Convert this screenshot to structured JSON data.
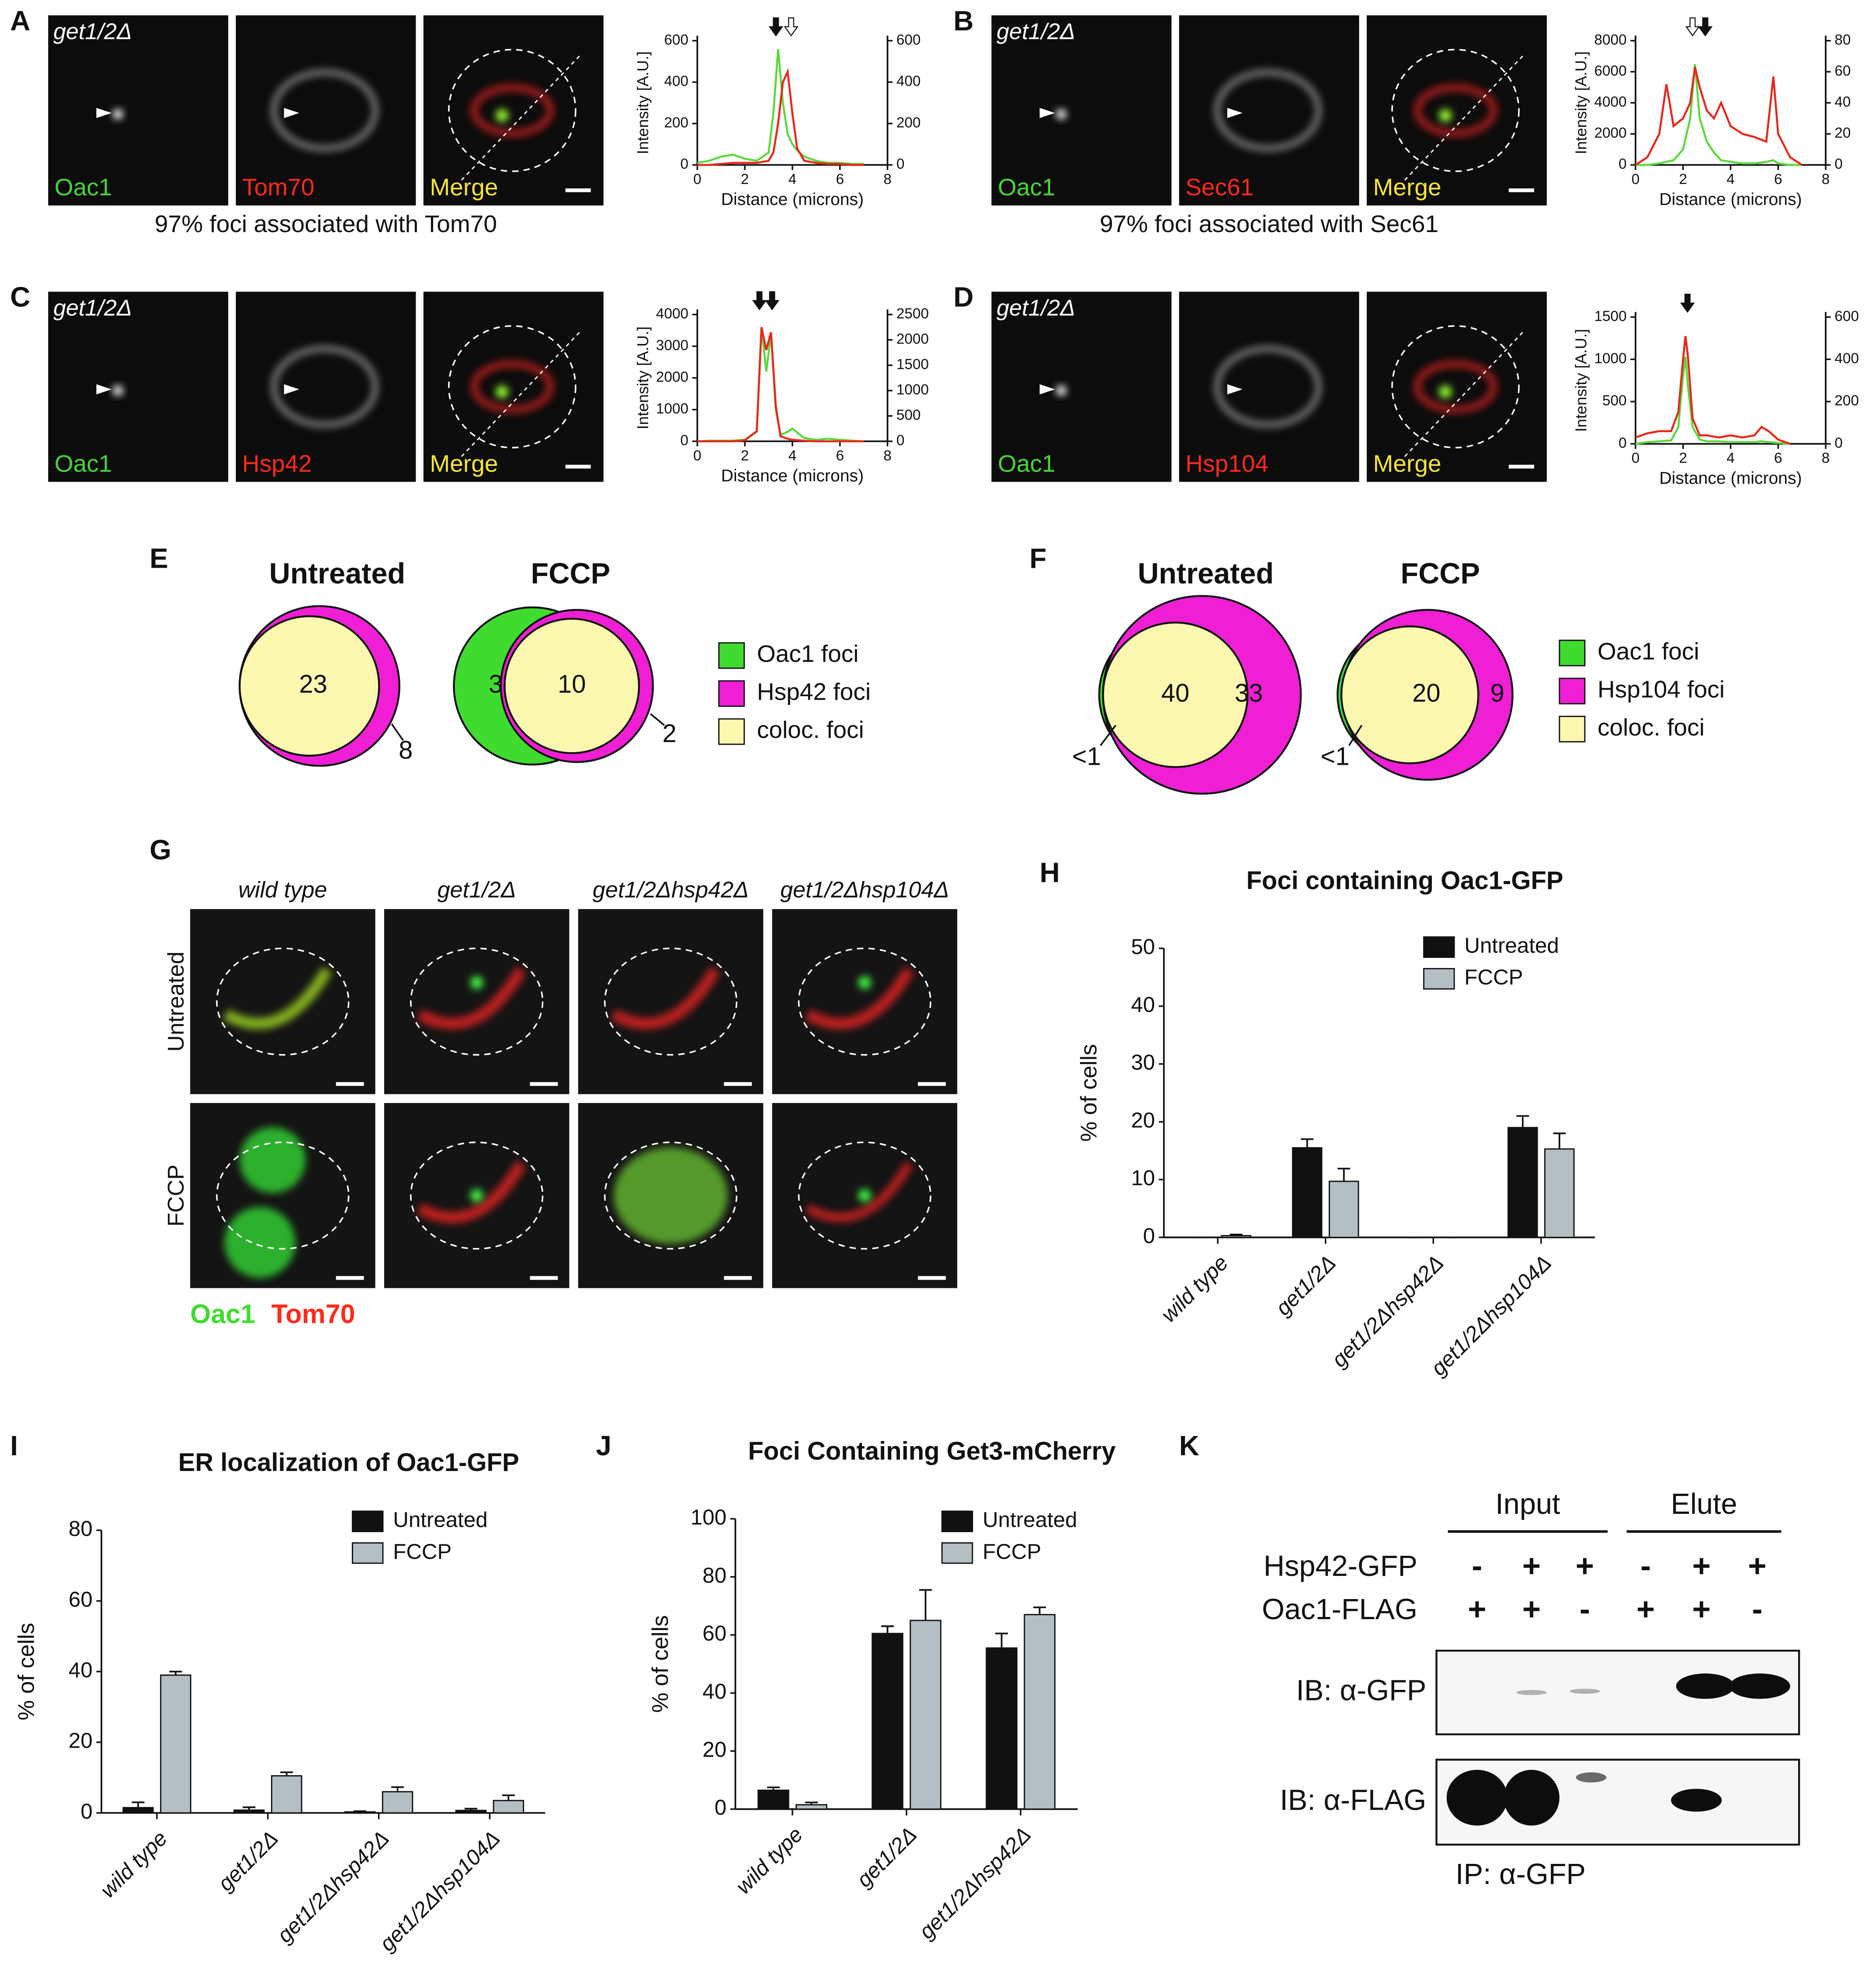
{
  "image_panels": [
    {
      "letter": "A",
      "strain": "get1/2Δ",
      "channels": [
        "Oac1",
        "Tom70",
        "Merge"
      ],
      "caption": "97% foci associated with Tom70"
    },
    {
      "letter": "B",
      "strain": "get1/2Δ",
      "channels": [
        "Oac1",
        "Sec61",
        "Merge"
      ],
      "caption": "97% foci associated with Sec61"
    },
    {
      "letter": "C",
      "strain": "get1/2Δ",
      "channels": [
        "Oac1",
        "Hsp42",
        "Merge"
      ]
    },
    {
      "letter": "D",
      "strain": "get1/2Δ",
      "channels": [
        "Oac1",
        "Hsp104",
        "Merge"
      ]
    }
  ],
  "venn": [
    {
      "letter": "E",
      "diagrams": [
        {
          "title": "Untreated",
          "labels": [
            "23",
            "8"
          ]
        },
        {
          "title": "FCCP",
          "labels": [
            "3",
            "10",
            "2"
          ]
        }
      ],
      "legend": [
        "Oac1 foci",
        "Hsp42 foci",
        "coloc. foci"
      ]
    },
    {
      "letter": "F",
      "diagrams": [
        {
          "title": "Untreated",
          "labels": [
            "<1",
            "40",
            "33"
          ]
        },
        {
          "title": "FCCP",
          "labels": [
            "<1",
            "20",
            "9"
          ]
        }
      ],
      "legend": [
        "Oac1 foci",
        "Hsp104 foci",
        "coloc. foci"
      ]
    }
  ],
  "image_grid": {
    "letter": "G",
    "columns": [
      "wild type",
      "get1/2Δ",
      "get1/2Δhsp42Δ",
      "get1/2Δhsp104Δ"
    ],
    "rows": [
      "Untreated",
      "FCCP"
    ],
    "legend": [
      "Oac1",
      "Tom70"
    ]
  },
  "blot": {
    "letter": "K",
    "groups": [
      "Input",
      "Elute"
    ],
    "rows": [
      {
        "label": "Hsp42-GFP",
        "signs": [
          "-",
          "+",
          "+",
          "-",
          "+",
          "+"
        ]
      },
      {
        "label": "Oac1-FLAG",
        "signs": [
          "+",
          "+",
          "-",
          "+",
          "+",
          "-"
        ]
      }
    ],
    "blots": [
      "IB: α-GFP",
      "IB: α-FLAG"
    ],
    "footer": "IP: α-GFP"
  },
  "chart_data": [
    {
      "type": "line",
      "xlabel": "Distance (microns)",
      "ylabel": "Intensity [A.U.]",
      "x": [
        0,
        0.5,
        1,
        1.5,
        2,
        2.5,
        3,
        3.2,
        3.4,
        3.6,
        3.8,
        4,
        4.2,
        4.5,
        5,
        5.5,
        6,
        6.5,
        7
      ],
      "xlim": [
        0,
        8
      ],
      "xticks": [
        0,
        2,
        4,
        6,
        8
      ],
      "ylim": [
        0,
        600
      ],
      "yticks": [
        0,
        200,
        400,
        600
      ],
      "y2lim": [
        0,
        600
      ],
      "y2ticks": [
        0,
        200,
        400,
        600
      ],
      "series": [
        {
          "color": "#5ad93c",
          "values": [
            10,
            20,
            40,
            50,
            30,
            20,
            60,
            250,
            560,
            300,
            150,
            100,
            70,
            40,
            20,
            10,
            10,
            5,
            5
          ]
        },
        {
          "color": "#e8281c",
          "axis": "y2",
          "values": [
            0,
            0,
            5,
            10,
            10,
            10,
            20,
            60,
            200,
            400,
            450,
            250,
            80,
            20,
            10,
            5,
            5,
            0,
            0
          ]
        }
      ]
    },
    {
      "type": "line",
      "xlabel": "Distance (microns)",
      "ylabel": "Intensity [A.U.]",
      "x": [
        0,
        0.5,
        1,
        1.3,
        1.6,
        2,
        2.3,
        2.5,
        2.7,
        3,
        3.3,
        3.6,
        4,
        4.5,
        5,
        5.5,
        5.8,
        6,
        6.5,
        7
      ],
      "xlim": [
        0,
        8
      ],
      "xticks": [
        0,
        2,
        4,
        6,
        8
      ],
      "ylim": [
        0,
        8000
      ],
      "yticks": [
        0,
        2000,
        4000,
        6000,
        8000
      ],
      "y2lim": [
        0,
        80
      ],
      "y2ticks": [
        0,
        20,
        40,
        60,
        80
      ],
      "series": [
        {
          "color": "#5ad93c",
          "values": [
            0,
            0,
            100,
            200,
            300,
            1000,
            3000,
            6500,
            3000,
            1500,
            800,
            300,
            200,
            100,
            100,
            200,
            300,
            100,
            0,
            0
          ]
        },
        {
          "color": "#e8281c",
          "axis": "y2",
          "values": [
            0,
            5,
            20,
            52,
            25,
            30,
            40,
            63,
            50,
            35,
            30,
            40,
            25,
            20,
            18,
            15,
            57,
            20,
            5,
            0
          ]
        }
      ]
    },
    {
      "type": "line",
      "xlabel": "Distance (microns)",
      "ylabel": "Intensity [A.U.]",
      "x": [
        0,
        0.5,
        1,
        1.5,
        2,
        2.5,
        2.7,
        2.9,
        3.1,
        3.3,
        3.5,
        3.8,
        4,
        4.5,
        5,
        5.5,
        6,
        6.5,
        7
      ],
      "xlim": [
        0,
        8
      ],
      "xticks": [
        0,
        2,
        4,
        6,
        8
      ],
      "ylim": [
        0,
        4000
      ],
      "yticks": [
        0,
        1000,
        2000,
        3000,
        4000
      ],
      "y2lim": [
        0,
        2500
      ],
      "y2ticks": [
        0,
        500,
        1000,
        1500,
        2000,
        2500
      ],
      "series": [
        {
          "color": "#5ad93c",
          "values": [
            0,
            20,
            20,
            20,
            50,
            300,
            3600,
            2200,
            3400,
            1000,
            200,
            300,
            400,
            100,
            50,
            80,
            50,
            20,
            0
          ]
        },
        {
          "color": "#e8281c",
          "axis": "y2",
          "values": [
            0,
            0,
            0,
            0,
            20,
            200,
            2250,
            1800,
            2150,
            700,
            100,
            50,
            30,
            10,
            0,
            0,
            0,
            0,
            0
          ]
        }
      ]
    },
    {
      "type": "line",
      "xlabel": "Distance (microns)",
      "ylabel": "Intensity [A.U.]",
      "x": [
        0,
        0.5,
        1,
        1.5,
        1.8,
        2,
        2.1,
        2.2,
        2.4,
        2.7,
        3,
        3.5,
        4,
        4.5,
        5,
        5.3,
        5.6,
        6,
        6.5
      ],
      "xlim": [
        0,
        8
      ],
      "xticks": [
        0,
        2,
        4,
        6,
        8
      ],
      "ylim": [
        0,
        1500
      ],
      "yticks": [
        0,
        500,
        1000,
        1500
      ],
      "y2lim": [
        0,
        600
      ],
      "y2ticks": [
        0,
        200,
        400,
        600
      ],
      "series": [
        {
          "color": "#5ad93c",
          "values": [
            0,
            20,
            30,
            40,
            200,
            800,
            1030,
            700,
            200,
            50,
            30,
            30,
            20,
            20,
            20,
            30,
            20,
            10,
            0
          ]
        },
        {
          "color": "#e8281c",
          "axis": "y2",
          "values": [
            30,
            50,
            60,
            60,
            150,
            400,
            510,
            420,
            120,
            40,
            40,
            30,
            40,
            30,
            40,
            80,
            60,
            20,
            0
          ]
        }
      ]
    },
    {
      "type": "bar",
      "panel": "H",
      "title": "Foci containing Oac1-GFP",
      "ylabel": "% of cells",
      "categories": [
        "wild type",
        "get1/2Δ",
        "get1/2Δhsp42Δ",
        "get1/2Δhsp104Δ"
      ],
      "ylim": [
        0,
        50
      ],
      "yticks": [
        0,
        10,
        20,
        30,
        40,
        50
      ],
      "series": [
        {
          "name": "Untreated",
          "color": "#111111",
          "values": [
            0,
            15.5,
            0,
            19
          ],
          "errors": [
            0,
            1.5,
            0,
            2
          ]
        },
        {
          "name": "FCCP",
          "color": "#b4bfc3",
          "values": [
            0.3,
            9.7,
            0,
            15.3
          ],
          "errors": [
            0.2,
            2.2,
            0,
            2.7
          ]
        }
      ]
    },
    {
      "type": "bar",
      "panel": "I",
      "title": "ER localization of Oac1-GFP",
      "ylabel": "% of cells",
      "categories": [
        "wild type",
        "get1/2Δ",
        "get1/2Δhsp42Δ",
        "get1/2Δhsp104Δ"
      ],
      "ylim": [
        0,
        80
      ],
      "yticks": [
        0,
        20,
        40,
        60,
        80
      ],
      "series": [
        {
          "name": "Untreated",
          "color": "#111111",
          "values": [
            1.5,
            0.8,
            0.3,
            0.7
          ],
          "errors": [
            1.5,
            0.8,
            0.2,
            0.5
          ]
        },
        {
          "name": "FCCP",
          "color": "#b4bfc3",
          "values": [
            39,
            10.5,
            6,
            3.5
          ],
          "errors": [
            1,
            1,
            1.3,
            1.5
          ]
        }
      ]
    },
    {
      "type": "bar",
      "panel": "J",
      "title": "Foci Containing Get3-mCherry",
      "ylabel": "% of cells",
      "categories": [
        "wild type",
        "get1/2Δ",
        "get1/2Δhsp42Δ"
      ],
      "ylim": [
        0,
        100
      ],
      "yticks": [
        0,
        20,
        40,
        60,
        80,
        100
      ],
      "series": [
        {
          "name": "Untreated",
          "color": "#111111",
          "values": [
            6.5,
            60.5,
            55.5
          ],
          "errors": [
            1,
            2.5,
            5
          ]
        },
        {
          "name": "FCCP",
          "color": "#b4bfc3",
          "values": [
            1.5,
            65,
            67
          ],
          "errors": [
            0.8,
            10.5,
            2.5
          ]
        }
      ]
    }
  ]
}
